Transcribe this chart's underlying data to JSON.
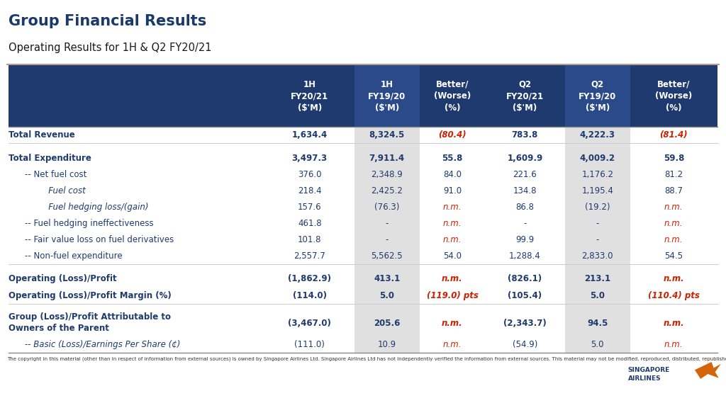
{
  "title": "Group Financial Results",
  "subtitle": "Operating Results for 1H & Q2 FY20/21",
  "title_color": "#1a3a6b",
  "subtitle_color": "#1a1a1a",
  "col_headers": [
    "1H\nFY20/21\n($'M)",
    "1H\nFY19/20\n($'M)",
    "Better/\n(Worse)\n(%)",
    "Q2\nFY20/21\n($'M)",
    "Q2\nFY19/20\n($'M)",
    "Better/\n(Worse)\n(%)"
  ],
  "rows": [
    {
      "label": "Total Revenue",
      "indent": 0,
      "bold": true,
      "italic": false,
      "values": [
        "1,634.4",
        "8,324.5",
        "(80.4)",
        "783.8",
        "4,222.3",
        "(81.4)"
      ],
      "red_cols": [
        2,
        5
      ],
      "spacer": false,
      "multiline": false
    },
    {
      "label": "",
      "indent": 0,
      "bold": false,
      "italic": false,
      "values": [
        "",
        "",
        "",
        "",
        "",
        ""
      ],
      "red_cols": [],
      "spacer": true,
      "multiline": false
    },
    {
      "label": "Total Expenditure",
      "indent": 0,
      "bold": true,
      "italic": false,
      "values": [
        "3,497.3",
        "7,911.4",
        "55.8",
        "1,609.9",
        "4,009.2",
        "59.8"
      ],
      "red_cols": [],
      "spacer": false,
      "multiline": false
    },
    {
      "label": "-- Net fuel cost",
      "indent": 1,
      "bold": false,
      "italic": false,
      "values": [
        "376.0",
        "2,348.9",
        "84.0",
        "221.6",
        "1,176.2",
        "81.2"
      ],
      "red_cols": [],
      "spacer": false,
      "multiline": false
    },
    {
      "label": "   Fuel cost",
      "indent": 2,
      "bold": false,
      "italic": true,
      "values": [
        "218.4",
        "2,425.2",
        "91.0",
        "134.8",
        "1,195.4",
        "88.7"
      ],
      "red_cols": [],
      "spacer": false,
      "multiline": false
    },
    {
      "label": "   Fuel hedging loss/(gain)",
      "indent": 2,
      "bold": false,
      "italic": true,
      "values": [
        "157.6",
        "(76.3)",
        "n.m.",
        "86.8",
        "(19.2)",
        "n.m."
      ],
      "red_cols": [
        2,
        5
      ],
      "spacer": false,
      "multiline": false
    },
    {
      "label": "-- Fuel hedging ineffectiveness",
      "indent": 1,
      "bold": false,
      "italic": false,
      "values": [
        "461.8",
        "-",
        "n.m.",
        "-",
        "-",
        "n.m."
      ],
      "red_cols": [
        2,
        5
      ],
      "spacer": false,
      "multiline": false
    },
    {
      "label": "-- Fair value loss on fuel derivatives",
      "indent": 1,
      "bold": false,
      "italic": false,
      "values": [
        "101.8",
        "-",
        "n.m.",
        "99.9",
        "-",
        "n.m."
      ],
      "red_cols": [
        2,
        5
      ],
      "spacer": false,
      "multiline": false
    },
    {
      "label": "-- Non-fuel expenditure",
      "indent": 1,
      "bold": false,
      "italic": false,
      "values": [
        "2,557.7",
        "5,562.5",
        "54.0",
        "1,288.4",
        "2,833.0",
        "54.5"
      ],
      "red_cols": [],
      "spacer": false,
      "multiline": false
    },
    {
      "label": "",
      "indent": 0,
      "bold": false,
      "italic": false,
      "values": [
        "",
        "",
        "",
        "",
        "",
        ""
      ],
      "red_cols": [],
      "spacer": true,
      "multiline": false
    },
    {
      "label": "Operating (Loss)/Profit",
      "indent": 0,
      "bold": true,
      "italic": false,
      "values": [
        "(1,862.9)",
        "413.1",
        "n.m.",
        "(826.1)",
        "213.1",
        "n.m."
      ],
      "red_cols": [
        2,
        5
      ],
      "spacer": false,
      "multiline": false
    },
    {
      "label": "Operating (Loss)/Profit Margin (%)",
      "indent": 0,
      "bold": true,
      "italic": false,
      "values": [
        "(114.0)",
        "5.0",
        "(119.0) pts",
        "(105.4)",
        "5.0",
        "(110.4) pts"
      ],
      "red_cols": [
        2,
        5
      ],
      "spacer": false,
      "multiline": false
    },
    {
      "label": "",
      "indent": 0,
      "bold": false,
      "italic": false,
      "values": [
        "",
        "",
        "",
        "",
        "",
        ""
      ],
      "red_cols": [],
      "spacer": true,
      "multiline": false
    },
    {
      "label": "Group (Loss)/Profit Attributable to\nOwners of the Parent",
      "indent": 0,
      "bold": true,
      "italic": false,
      "values": [
        "(3,467.0)",
        "205.6",
        "n.m.",
        "(2,343.7)",
        "94.5",
        "n.m."
      ],
      "red_cols": [
        2,
        5
      ],
      "spacer": false,
      "multiline": true
    },
    {
      "label": "-- Basic (Loss)/Earnings Per Share (¢)",
      "indent": 1,
      "bold": false,
      "italic": true,
      "values": [
        "(111.0)",
        "10.9",
        "n.m.",
        "(54.9)",
        "5.0",
        "n.m."
      ],
      "red_cols": [
        2,
        5
      ],
      "spacer": false,
      "multiline": false
    }
  ],
  "shade_color": "#e0e0e0",
  "dark_blue": "#1e3a6e",
  "header_shade": "#2a4a8a",
  "red_color": "#cc2200",
  "footer_text": "The copyright in this material (other than in respect of information from external sources) is owned by Singapore Airlines Ltd. Singapore Airlines Ltd has not independently verified the information from external sources. This material may not be modified, reproduced, distributed, republished or transmitted in whole or in part in any manner or by any means without prior permission of Singapore Airlines Ltd.",
  "logo_text": "SINGAPORE\nAIRLINES",
  "separator_color": "#b0a090",
  "table_line_color": "#cccccc"
}
